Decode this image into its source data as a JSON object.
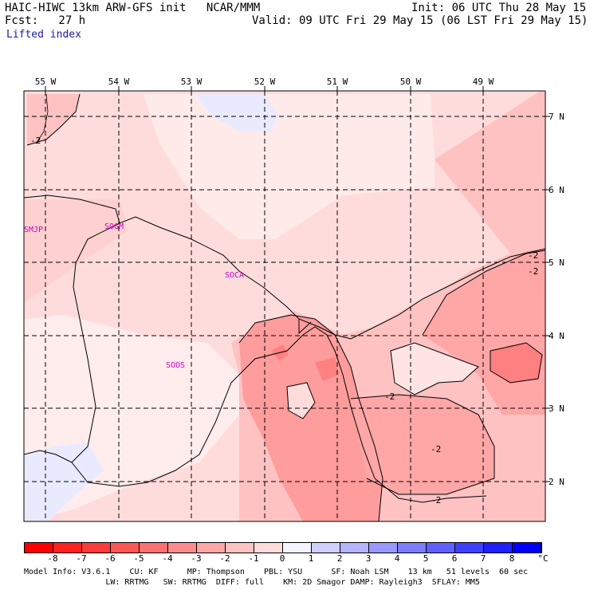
{
  "header": {
    "model_line": "HAIC-HIWC 13km ARW-GFS init   NCAR/MMM",
    "forecast_line": "Fcst:   27 h",
    "field_name": "Lifted index",
    "init_line": "Init: 06 UTC Thu 28 May 15",
    "valid_line": "Valid: 09 UTC Fri 29 May 15 (06 LST Fri 29 May 15)"
  },
  "longitude_labels": [
    "55 W",
    "54 W",
    "53 W",
    "52 W",
    "51 W",
    "50 W",
    "49 W"
  ],
  "latitude_labels": [
    "7 N",
    "6 N",
    "5 N",
    "4 N",
    "3 N",
    "2 N"
  ],
  "station_labels": [
    "SMJP",
    "SOGM",
    "SOCA",
    "SOOS"
  ],
  "contour_labels": [
    "-2",
    "-2",
    "-2",
    "-2",
    "-2",
    "-2"
  ],
  "colorbar": {
    "ticks": [
      "-8",
      "-7",
      "-6",
      "-5",
      "-4",
      "-3",
      "-2",
      "-1",
      "0",
      "1",
      "2",
      "3",
      "4",
      "5",
      "6",
      "7",
      "8"
    ],
    "unit": "°C",
    "colors": [
      "#ff0000",
      "#ff2020",
      "#ff3a3a",
      "#ff5656",
      "#ff7070",
      "#ff8c8c",
      "#ffa6a6",
      "#ffc2c2",
      "#ffdcdc",
      "#f4f4ff",
      "#d0d0ff",
      "#b4b4ff",
      "#9898ff",
      "#7c7cff",
      "#6060ff",
      "#4040ff",
      "#2020ff",
      "#0000ff"
    ]
  },
  "footer": {
    "line1": "Model Info: V3.6.1    CU: KF      MP: Thompson    PBL: YSU      SF: Noah LSM    13 km   51 levels  60 sec",
    "line2": "                 LW: RRTMG   SW: RRTMG  DIFF: full    KM: 2D Smagor DAMP: Rayleigh3  SFLAY: MM5"
  }
}
